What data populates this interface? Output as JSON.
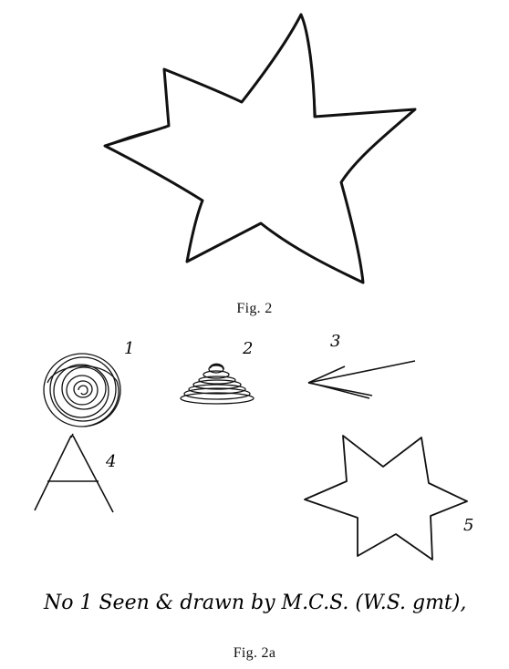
{
  "figure_top": {
    "caption": "Fig. 2"
  },
  "figure_bottom": {
    "caption": "Fig. 2a",
    "numbers": {
      "n1": "1",
      "n2": "2",
      "n3": "3",
      "n4": "4",
      "n5": "5"
    },
    "handwritten_note": "No 1 Seen & drawn by M.C.S. (W.S. gmt),"
  }
}
